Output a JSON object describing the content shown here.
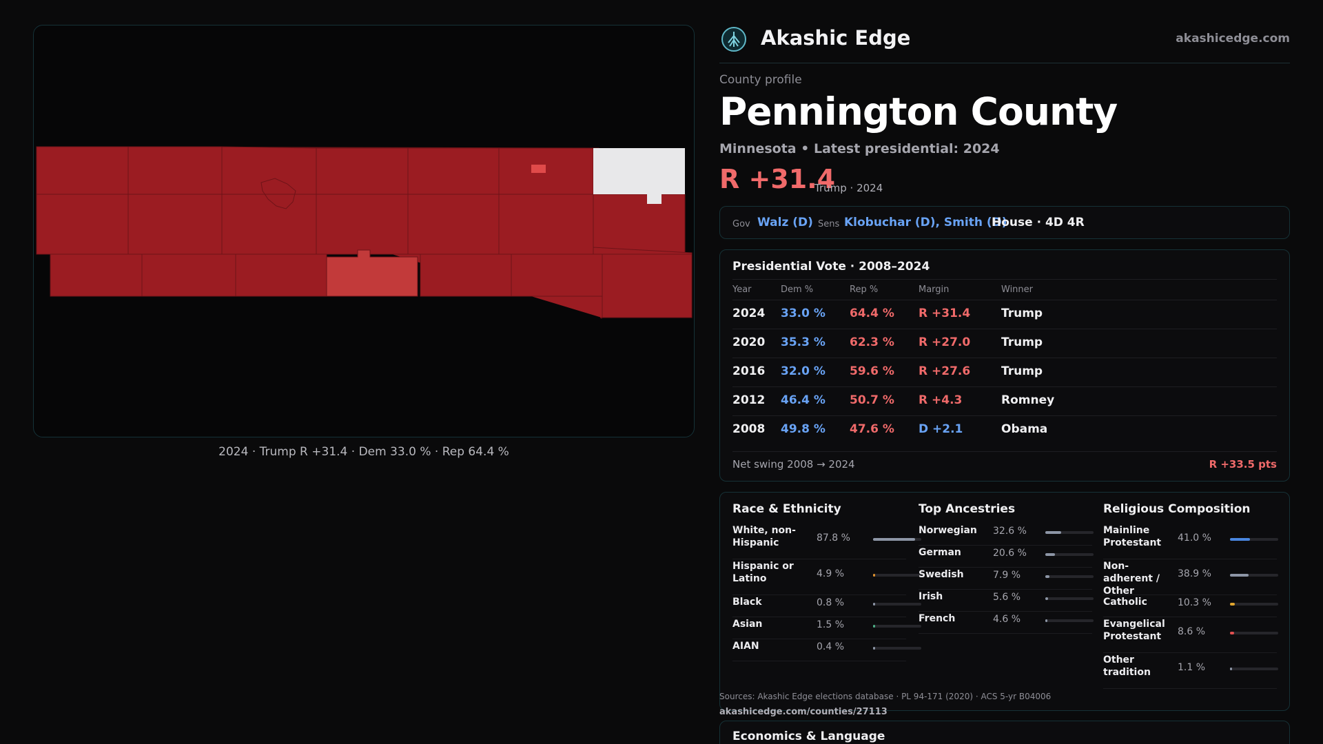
{
  "map": {
    "caption": "2024 · Trump R +31.4 · Dem 33.0 % · Rep 64.4 %",
    "colors": {
      "rep_strong": "#9b1c22",
      "rep_medium": "#c23a3a",
      "rep_light": "#e04a4a",
      "no_data": "#e8e8ea"
    }
  },
  "brand": {
    "name": "Akashic Edge",
    "url": "akashicedge.com",
    "logo": "tree-logo-icon"
  },
  "profile": {
    "kicker": "County profile",
    "title": "Pennington County",
    "subtitle": "Minnesota • Latest presidential: 2024",
    "margin": "R +31.4",
    "margin_note": "Trump · 2024"
  },
  "officials": {
    "gov_label": "Gov",
    "gov": "Walz (D)",
    "sens_label": "Sens",
    "sens": "Klobuchar (D), Smith (D)",
    "house": "House · 4D 4R"
  },
  "presidential": {
    "title": "Presidential Vote · 2008–2024",
    "columns": [
      "Year",
      "Dem %",
      "Rep %",
      "Margin",
      "Winner"
    ],
    "rows": [
      {
        "year": "2024",
        "dem": "33.0 %",
        "rep": "64.4 %",
        "margin": "R +31.4",
        "party": "R",
        "winner": "Trump"
      },
      {
        "year": "2020",
        "dem": "35.3 %",
        "rep": "62.3 %",
        "margin": "R +27.0",
        "party": "R",
        "winner": "Trump"
      },
      {
        "year": "2016",
        "dem": "32.0 %",
        "rep": "59.6 %",
        "margin": "R +27.6",
        "party": "R",
        "winner": "Trump"
      },
      {
        "year": "2012",
        "dem": "46.4 %",
        "rep": "50.7 %",
        "margin": "R +4.3",
        "party": "R",
        "winner": "Romney"
      },
      {
        "year": "2008",
        "dem": "49.8 %",
        "rep": "47.6 %",
        "margin": "D +2.1",
        "party": "D",
        "winner": "Obama"
      }
    ],
    "swing_label": "Net swing 2008 → 2024",
    "swing_value": "R +33.5 pts"
  },
  "demographics": {
    "race": {
      "title": "Race & Ethnicity",
      "items": [
        {
          "label": "White, non-Hispanic",
          "value": "87.8 %",
          "pct": 87.8,
          "color": "#8d96a6"
        },
        {
          "label": "Hispanic or Latino",
          "value": "4.9 %",
          "pct": 4.9,
          "color": "#e0922e"
        },
        {
          "label": "Black",
          "value": "0.8 %",
          "pct": 0.8,
          "color": "#8d96a6"
        },
        {
          "label": "Asian",
          "value": "1.5 %",
          "pct": 1.5,
          "color": "#4caf86"
        },
        {
          "label": "AIAN",
          "value": "0.4 %",
          "pct": 0.4,
          "color": "#8d96a6"
        }
      ]
    },
    "ancestry": {
      "title": "Top Ancestries",
      "items": [
        {
          "label": "Norwegian",
          "value": "32.6 %",
          "pct": 32.6,
          "color": "#8d96a6"
        },
        {
          "label": "German",
          "value": "20.6 %",
          "pct": 20.6,
          "color": "#8d96a6"
        },
        {
          "label": "Swedish",
          "value": "7.9 %",
          "pct": 7.9,
          "color": "#8d96a6"
        },
        {
          "label": "Irish",
          "value": "5.6 %",
          "pct": 5.6,
          "color": "#8d96a6"
        },
        {
          "label": "French",
          "value": "4.6 %",
          "pct": 4.6,
          "color": "#8d96a6"
        }
      ]
    },
    "religion": {
      "title": "Religious Composition",
      "items": [
        {
          "label": "Mainline Protestant",
          "value": "41.0 %",
          "pct": 41.0,
          "color": "#4a86e0"
        },
        {
          "label": "Non-adherent / Other",
          "value": "38.9 %",
          "pct": 38.9,
          "color": "#8d96a6"
        },
        {
          "label": "Catholic",
          "value": "10.3 %",
          "pct": 10.3,
          "color": "#e0a52e"
        },
        {
          "label": "Evangelical Protestant",
          "value": "8.6 %",
          "pct": 8.6,
          "color": "#e05050"
        },
        {
          "label": "Other tradition",
          "value": "1.1 %",
          "pct": 1.1,
          "color": "#8d96a6"
        }
      ]
    }
  },
  "sources": {
    "text": "Sources: Akashic Edge elections database · PL 94-171 (2020) · ACS 5-yr B04006",
    "link": "akashicedge.com/counties/27113"
  },
  "economics": {
    "title": "Economics & Language"
  }
}
